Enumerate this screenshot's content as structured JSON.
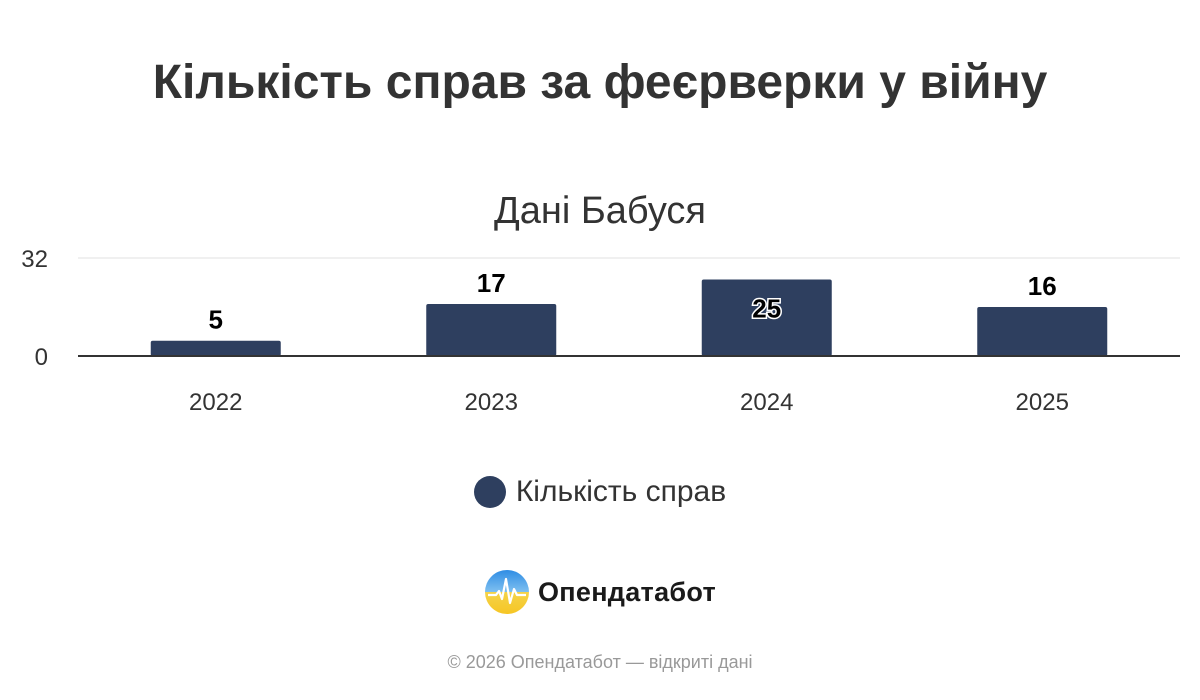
{
  "title": "Кількість справ за феєрверки у війну",
  "subtitle": "Дані Бабуся",
  "legend": {
    "label": "Кількість справ",
    "color": "#2e3f5f"
  },
  "brand": {
    "name": "Опендатабот",
    "logo_icon": "opendatabot-logo-icon"
  },
  "footer": {
    "text": "© 2026 Опендатабот — відкриті дані"
  },
  "chart_data": {
    "type": "bar",
    "categories": [
      "2022",
      "2023",
      "2024",
      "2025"
    ],
    "series": [
      {
        "name": "Кількість справ",
        "values": [
          5,
          17,
          25,
          16
        ],
        "color": "#2e3f5f"
      }
    ],
    "xlabel": "",
    "ylabel": "",
    "ylim": [
      0,
      32
    ],
    "yticks": [
      0,
      32
    ],
    "grid": true,
    "data_labels": true,
    "legend_position": "bottom"
  }
}
